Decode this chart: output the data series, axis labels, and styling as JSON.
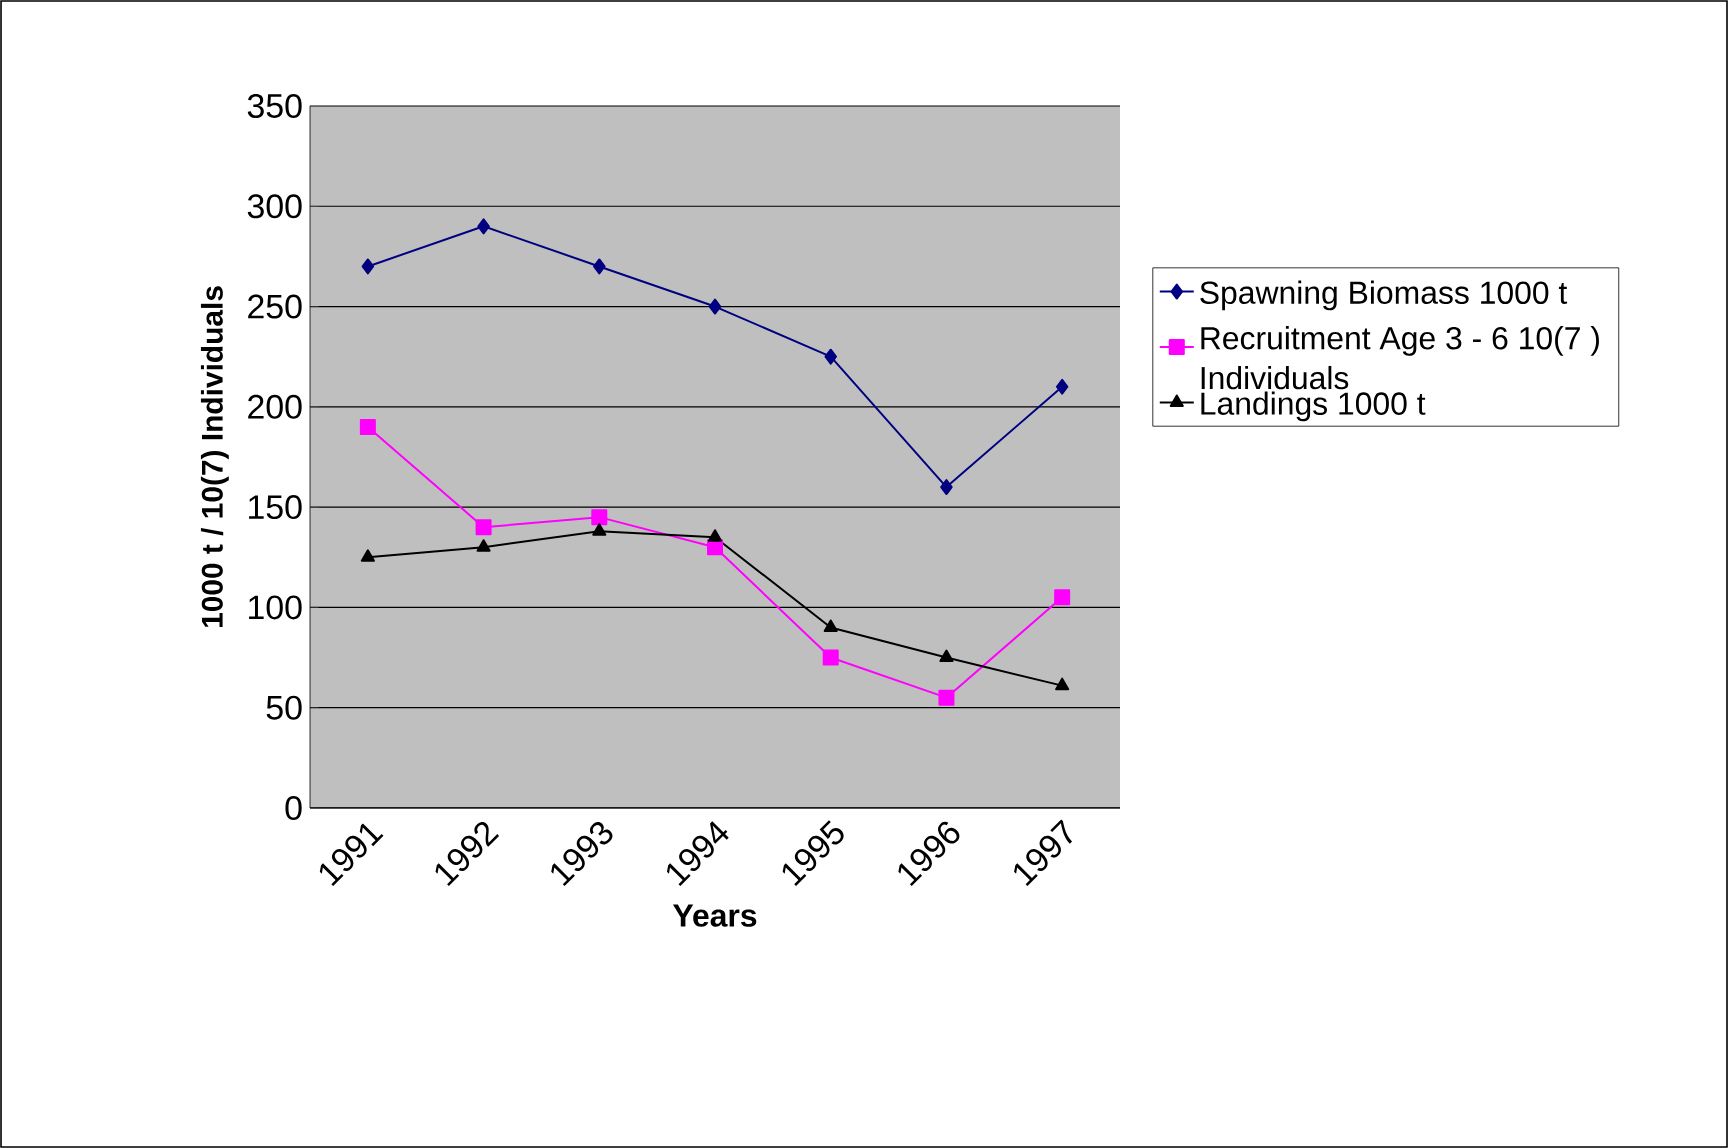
{
  "chart_data": {
    "type": "line",
    "xlabel": "Years",
    "ylabel": "1000 t / 10(7) Individuals",
    "categories": [
      "1991",
      "1992",
      "1993",
      "1994",
      "1995",
      "1996",
      "1997"
    ],
    "series": [
      {
        "name": "Spawning Biomass 1000 t",
        "color": "#000080",
        "marker": "diamond",
        "values": [
          270,
          290,
          270,
          250,
          225,
          160,
          210
        ]
      },
      {
        "name": "Recruitment Age 3 - 6 10(7 ) Individuals",
        "color": "#ff00ff",
        "marker": "square",
        "values": [
          190,
          140,
          145,
          130,
          75,
          55,
          105
        ]
      },
      {
        "name": "Landings 1000 t",
        "color": "#000000",
        "marker": "triangle",
        "values": [
          125,
          130,
          138,
          135,
          90,
          75,
          61
        ]
      }
    ],
    "ylim": [
      0,
      350
    ],
    "yticks": [
      0,
      50,
      100,
      150,
      200,
      250,
      300,
      350
    ],
    "grid": "y",
    "legend": "right",
    "line_style": "solid"
  }
}
